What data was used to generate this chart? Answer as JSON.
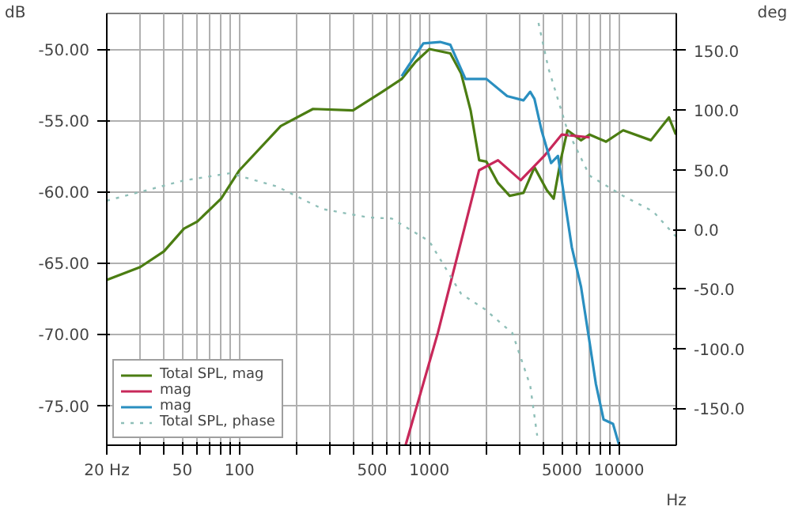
{
  "chart_data": {
    "type": "line",
    "xlabel": "Hz",
    "ylabel": "dB",
    "y2label": "deg",
    "log": "x",
    "grid": true,
    "legend": "bottom left",
    "xlim": [
      20,
      20000
    ],
    "ylim": [
      -77.8,
      -47.5
    ],
    "y2lim": [
      -181,
      181
    ],
    "xticks": [
      {
        "value": 20,
        "label": "20 Hz"
      },
      {
        "value": 30,
        "label": null
      },
      {
        "value": 40,
        "label": null
      },
      50,
      {
        "value": 60,
        "label": null
      },
      {
        "value": 70,
        "label": null
      },
      {
        "value": 80,
        "label": null
      },
      {
        "value": 90,
        "label": null
      },
      100,
      {
        "value": 200,
        "label": null
      },
      {
        "value": 300,
        "label": null
      },
      {
        "value": 400,
        "label": null
      },
      500,
      {
        "value": 600,
        "label": null
      },
      {
        "value": 700,
        "label": null
      },
      {
        "value": 800,
        "label": null
      },
      {
        "value": 900,
        "label": null
      },
      1000,
      {
        "value": 2000,
        "label": null
      },
      {
        "value": 3000,
        "label": null
      },
      {
        "value": 4000,
        "label": null
      },
      5000,
      {
        "value": 6000,
        "label": null
      },
      {
        "value": 7000,
        "label": null
      },
      {
        "value": 8000,
        "label": null
      },
      {
        "value": 9000,
        "label": null
      },
      10000
    ],
    "yticks": [
      {
        "value": -50,
        "label": "-50.00"
      },
      {
        "value": -55,
        "label": "-55.00"
      },
      {
        "value": -60,
        "label": "-60.00"
      },
      {
        "value": -65,
        "label": "-65.00"
      },
      {
        "value": -70,
        "label": "-70.00"
      },
      {
        "value": -75,
        "label": "-75.00"
      }
    ],
    "y2ticks": [
      {
        "value": 150,
        "label": "150.0"
      },
      {
        "value": 100,
        "label": "100.0"
      },
      {
        "value": 50,
        "label": "50.0"
      },
      {
        "value": 0,
        "label": "0.0"
      },
      {
        "value": -50,
        "label": "-50.0"
      },
      {
        "value": -100,
        "label": "-100.0"
      },
      {
        "value": -150,
        "label": "-150.0"
      }
    ],
    "series": [
      {
        "name": "Total SPL, mag",
        "color": "#4b7d12",
        "line_style": "solid",
        "x": [
          20,
          30,
          40,
          51,
          60,
          80,
          100,
          165,
          244,
          396,
          565,
          715,
          846,
          1000,
          1290,
          1470,
          1650,
          1830,
          2000,
          2300,
          2650,
          3130,
          3580,
          4160,
          4520,
          4920,
          5340,
          6300,
          6990,
          8530,
          10500,
          14700,
          18300,
          19900
        ],
        "values": [
          -66.2,
          -65.3,
          -64.2,
          -62.6,
          -62.1,
          -60.5,
          -58.5,
          -55.4,
          -54.2,
          -54.3,
          -53.0,
          -52.1,
          -50.9,
          -50.0,
          -50.3,
          -51.7,
          -54.3,
          -57.8,
          -57.9,
          -59.4,
          -60.3,
          -60.1,
          -58.3,
          -59.9,
          -60.5,
          -57.8,
          -55.7,
          -56.4,
          -56.0,
          -56.5,
          -55.7,
          -56.4,
          -54.8,
          -56.0
        ]
      },
      {
        "name": "mag",
        "color": "#c8285a",
        "line_style": "solid",
        "x": [
          750,
          1110,
          1470,
          1830,
          2300,
          3030,
          4030,
          4980,
          6990
        ],
        "values": [
          -77.8,
          -69.9,
          -63.5,
          -58.5,
          -57.8,
          -59.2,
          -57.5,
          -56.0,
          -56.2
        ]
      },
      {
        "name": "mag",
        "color": "#2a8fc0",
        "line_style": "solid",
        "x": [
          715,
          930,
          1140,
          1290,
          1550,
          2000,
          2570,
          3130,
          3400,
          3580,
          3900,
          4380,
          4760,
          4980,
          5630,
          6300,
          6990,
          7540,
          8280,
          9280,
          10000
        ],
        "values": [
          -51.9,
          -49.6,
          -49.5,
          -49.7,
          -52.1,
          -52.1,
          -53.3,
          -53.6,
          -53.0,
          -53.5,
          -55.7,
          -58.0,
          -57.5,
          -59.2,
          -63.9,
          -66.7,
          -70.6,
          -73.5,
          -76.0,
          -76.3,
          -77.8
        ]
      },
      {
        "name": "Total SPL, phase",
        "color": "#8fbfb8",
        "line_style": "dotted",
        "axis": "y2",
        "x": [
          20,
          51,
          89,
          157,
          274,
          476,
          635,
          1000,
          1470,
          1960,
          2740,
          3400,
          3700,
          3730,
          3760,
          4240,
          5340,
          6990,
          10500,
          15100,
          19900
        ],
        "values": [
          24,
          41,
          47,
          36,
          17,
          10,
          9,
          -10,
          -54,
          -67,
          -87,
          -131,
          -173,
          null,
          173,
          135,
          83,
          45,
          28,
          15,
          -6
        ]
      }
    ]
  }
}
